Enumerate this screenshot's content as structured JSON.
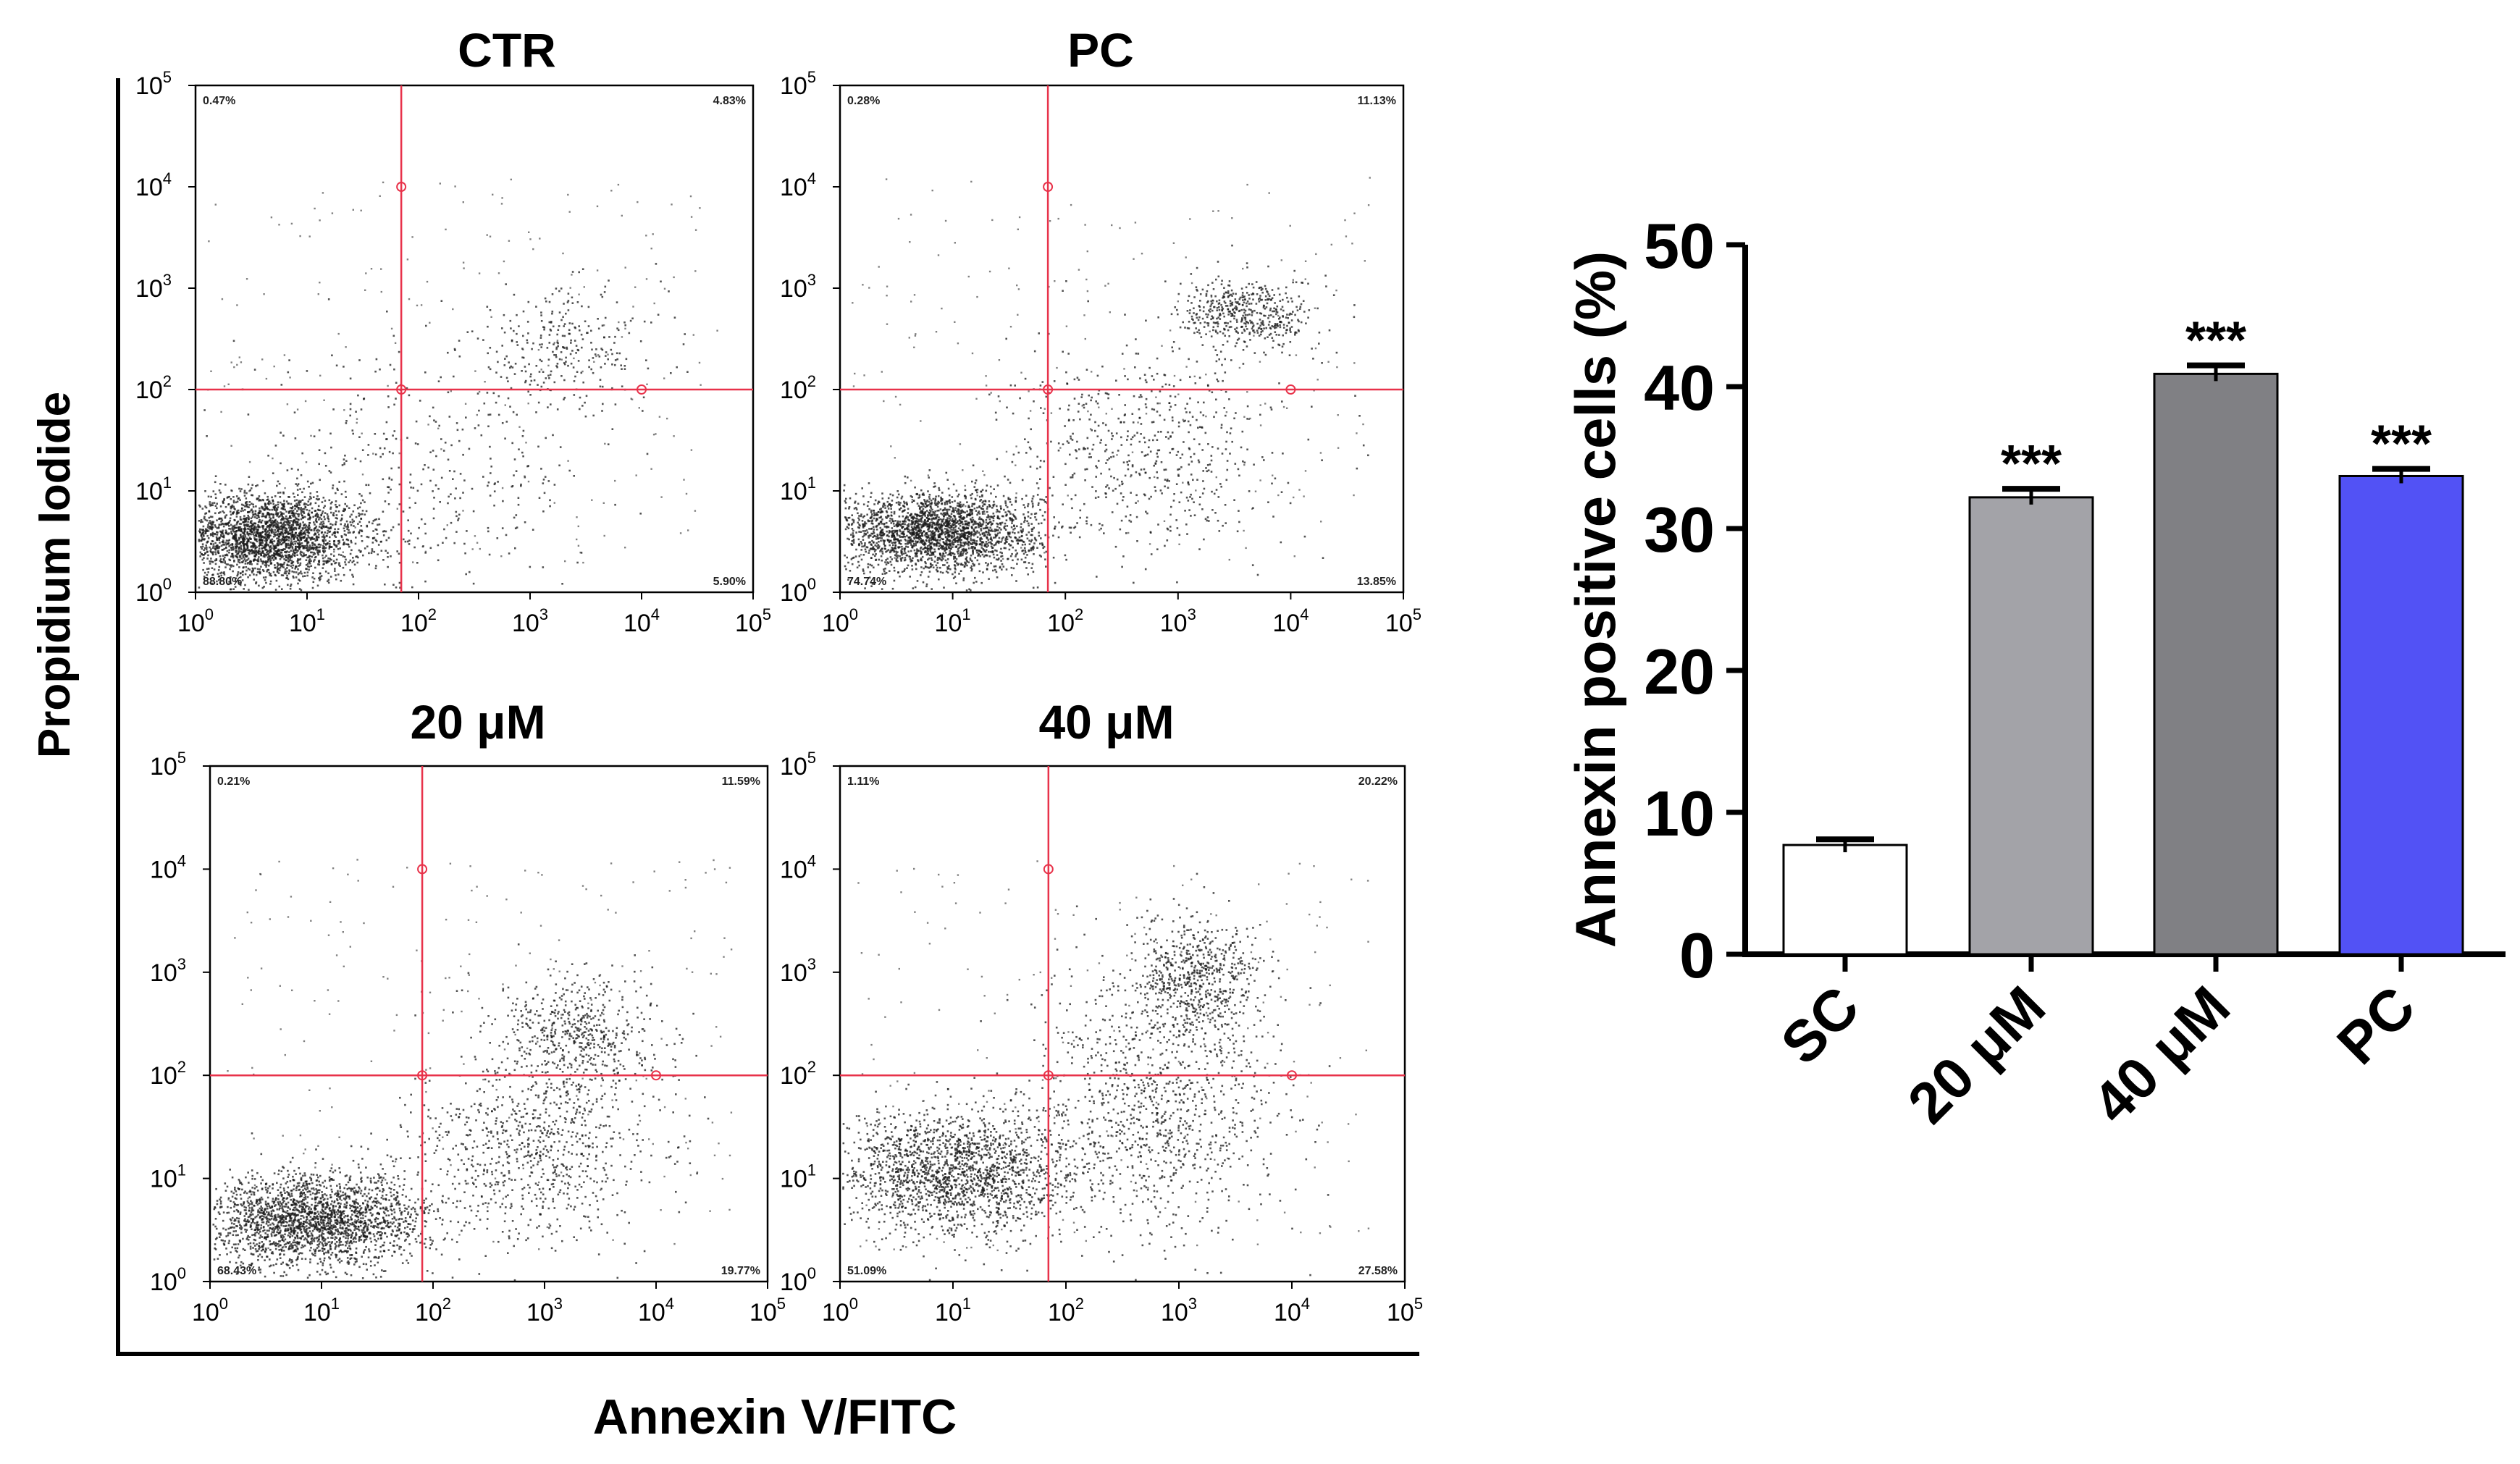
{
  "figure": {
    "y_axis_label": "Propidium Iodide",
    "x_axis_label": "Annexin V/FITC"
  },
  "colors": {
    "gate": "#e8324a",
    "dots": "#1a1a1a",
    "axis": "#000000",
    "bar_sc": "#ffffff",
    "bar_20": "#a3a3a8",
    "bar_40": "#808084",
    "bar_pc": "#5252f5"
  },
  "chart_data": [
    {
      "type": "scatter",
      "title": "CTR",
      "xscale": "log",
      "yscale": "log",
      "xlim": [
        1,
        100000
      ],
      "ylim": [
        1,
        100000
      ],
      "x_ticks": [
        {
          "base": "10",
          "exp": "0"
        },
        {
          "base": "10",
          "exp": "1"
        },
        {
          "base": "10",
          "exp": "2"
        },
        {
          "base": "10",
          "exp": "3"
        },
        {
          "base": "10",
          "exp": "4"
        },
        {
          "base": "10",
          "exp": "5"
        }
      ],
      "y_ticks": [
        {
          "base": "10",
          "exp": "0"
        },
        {
          "base": "10",
          "exp": "1"
        },
        {
          "base": "10",
          "exp": "2"
        },
        {
          "base": "10",
          "exp": "3"
        },
        {
          "base": "10",
          "exp": "4"
        },
        {
          "base": "10",
          "exp": "5"
        }
      ],
      "gate": {
        "x": 70,
        "y": 100
      },
      "quadrants": {
        "upper_left": "0.47%",
        "upper_right": "4.83%",
        "lower_left": "88.80%",
        "lower_right": "5.90%"
      },
      "populations": [
        {
          "x_log": 0.65,
          "y_log": 0.55,
          "sx": 0.42,
          "sy": 0.22,
          "n": 2600
        },
        {
          "x_log": 3.3,
          "y_log": 2.4,
          "sx": 0.45,
          "sy": 0.3,
          "n": 300
        },
        {
          "x_log": 1.9,
          "y_log": 1.1,
          "sx": 0.8,
          "sy": 0.6,
          "n": 400
        }
      ]
    },
    {
      "type": "scatter",
      "title": "PC",
      "xscale": "log",
      "yscale": "log",
      "xlim": [
        1,
        100000
      ],
      "ylim": [
        1,
        100000
      ],
      "x_ticks": [
        {
          "base": "10",
          "exp": "0"
        },
        {
          "base": "10",
          "exp": "1"
        },
        {
          "base": "10",
          "exp": "2"
        },
        {
          "base": "10",
          "exp": "3"
        },
        {
          "base": "10",
          "exp": "4"
        },
        {
          "base": "10",
          "exp": "5"
        }
      ],
      "y_ticks": [
        {
          "base": "10",
          "exp": "0"
        },
        {
          "base": "10",
          "exp": "1"
        },
        {
          "base": "10",
          "exp": "2"
        },
        {
          "base": "10",
          "exp": "3"
        },
        {
          "base": "10",
          "exp": "4"
        },
        {
          "base": "10",
          "exp": "5"
        }
      ],
      "gate": {
        "x": 70,
        "y": 100
      },
      "quadrants": {
        "upper_left": "0.28%",
        "upper_right": "11.13%",
        "lower_left": "74.74%",
        "lower_right": "13.85%"
      },
      "populations": [
        {
          "x_log": 0.85,
          "y_log": 0.6,
          "sx": 0.45,
          "sy": 0.2,
          "n": 2400
        },
        {
          "x_log": 3.6,
          "y_log": 2.75,
          "sx": 0.3,
          "sy": 0.18,
          "n": 500
        },
        {
          "x_log": 2.7,
          "y_log": 1.4,
          "sx": 0.6,
          "sy": 0.5,
          "n": 600
        }
      ]
    },
    {
      "type": "scatter",
      "title": "20 μM",
      "xscale": "log",
      "yscale": "log",
      "xlim": [
        1,
        100000
      ],
      "ylim": [
        1,
        100000
      ],
      "x_ticks": [
        {
          "base": "10",
          "exp": "0"
        },
        {
          "base": "10",
          "exp": "1"
        },
        {
          "base": "10",
          "exp": "2"
        },
        {
          "base": "10",
          "exp": "3"
        },
        {
          "base": "10",
          "exp": "4"
        },
        {
          "base": "10",
          "exp": "5"
        }
      ],
      "y_ticks": [
        {
          "base": "10",
          "exp": "0"
        },
        {
          "base": "10",
          "exp": "1"
        },
        {
          "base": "10",
          "exp": "2"
        },
        {
          "base": "10",
          "exp": "3"
        },
        {
          "base": "10",
          "exp": "4"
        },
        {
          "base": "10",
          "exp": "5"
        }
      ],
      "gate": {
        "x": 80,
        "y": 100
      },
      "quadrants": {
        "upper_left": "0.21%",
        "upper_right": "11.59%",
        "lower_left": "68.43%",
        "lower_right": "19.77%"
      },
      "populations": [
        {
          "x_log": 0.95,
          "y_log": 0.6,
          "sx": 0.5,
          "sy": 0.22,
          "n": 2300
        },
        {
          "x_log": 3.3,
          "y_log": 2.4,
          "sx": 0.35,
          "sy": 0.3,
          "n": 550
        },
        {
          "x_log": 2.9,
          "y_log": 1.3,
          "sx": 0.55,
          "sy": 0.45,
          "n": 800
        }
      ]
    },
    {
      "type": "scatter",
      "title": "40 μM",
      "xscale": "log",
      "yscale": "log",
      "xlim": [
        1,
        100000
      ],
      "ylim": [
        1,
        100000
      ],
      "x_ticks": [
        {
          "base": "10",
          "exp": "0"
        },
        {
          "base": "10",
          "exp": "1"
        },
        {
          "base": "10",
          "exp": "2"
        },
        {
          "base": "10",
          "exp": "3"
        },
        {
          "base": "10",
          "exp": "4"
        },
        {
          "base": "10",
          "exp": "5"
        }
      ],
      "y_ticks": [
        {
          "base": "10",
          "exp": "0"
        },
        {
          "base": "10",
          "exp": "1"
        },
        {
          "base": "10",
          "exp": "2"
        },
        {
          "base": "10",
          "exp": "3"
        },
        {
          "base": "10",
          "exp": "4"
        },
        {
          "base": "10",
          "exp": "5"
        }
      ],
      "gate": {
        "x": 70,
        "y": 100
      },
      "quadrants": {
        "upper_left": "1.11%",
        "upper_right": "20.22%",
        "lower_left": "51.09%",
        "lower_right": "27.58%"
      },
      "populations": [
        {
          "x_log": 1.0,
          "y_log": 1.05,
          "sx": 0.55,
          "sy": 0.3,
          "n": 1900
        },
        {
          "x_log": 3.15,
          "y_log": 2.95,
          "sx": 0.3,
          "sy": 0.3,
          "n": 650
        },
        {
          "x_log": 2.8,
          "y_log": 1.7,
          "sx": 0.55,
          "sy": 0.6,
          "n": 1000
        }
      ]
    },
    {
      "type": "bar",
      "categories": [
        "SC",
        "20 μM",
        "40 μM",
        "PC"
      ],
      "values": [
        7.7,
        32.2,
        40.9,
        33.7
      ],
      "errors": [
        0.4,
        0.6,
        0.6,
        0.5
      ],
      "significance": [
        "",
        "***",
        "***",
        "***"
      ],
      "ylabel": "Annexin positive cells (%)",
      "xlabel": "",
      "ylim": [
        0,
        50
      ],
      "yticks": [
        0,
        10,
        20,
        30,
        40,
        50
      ],
      "ytick_labels": [
        "0",
        "10",
        "20",
        "30",
        "40",
        "50"
      ]
    }
  ]
}
